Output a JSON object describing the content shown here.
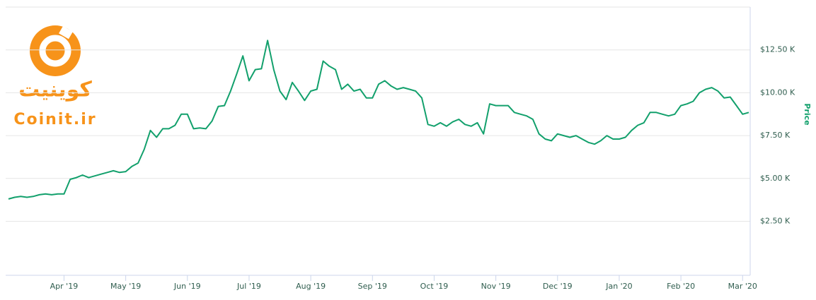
{
  "chart_data": {
    "type": "line",
    "y_axis_title": "Price",
    "watermark": {
      "title": "کوینیت",
      "site": "Coinit.ir"
    },
    "categories": [
      null,
      null,
      null,
      null,
      null,
      null,
      null,
      null,
      null,
      "Apr '19",
      null,
      null,
      null,
      null,
      null,
      null,
      null,
      null,
      null,
      "May '19",
      null,
      null,
      null,
      null,
      null,
      null,
      null,
      null,
      null,
      "Jun '19",
      null,
      null,
      null,
      null,
      null,
      null,
      null,
      null,
      null,
      "Jul '19",
      null,
      null,
      null,
      null,
      null,
      null,
      null,
      null,
      null,
      "Aug '19",
      null,
      null,
      null,
      null,
      null,
      null,
      null,
      null,
      null,
      "Sep '19",
      null,
      null,
      null,
      null,
      null,
      null,
      null,
      null,
      null,
      "Oct '19",
      null,
      null,
      null,
      null,
      null,
      null,
      null,
      null,
      null,
      "Nov '19",
      null,
      null,
      null,
      null,
      null,
      null,
      null,
      null,
      null,
      "Dec '19",
      null,
      null,
      null,
      null,
      null,
      null,
      null,
      null,
      null,
      "Jan '20",
      null,
      null,
      null,
      null,
      null,
      null,
      null,
      null,
      null,
      "Feb '20",
      null,
      null,
      null,
      null,
      null,
      null,
      null,
      null,
      null,
      "Mar '20",
      null
    ],
    "series": [
      {
        "name": "Price",
        "color": "#12a06c",
        "values": [
          3800,
          3900,
          3950,
          3900,
          3950,
          4050,
          4100,
          4050,
          4100,
          4100,
          4950,
          5050,
          5200,
          5050,
          5150,
          5250,
          5350,
          5450,
          5350,
          5400,
          5700,
          5900,
          6700,
          7800,
          7400,
          7900,
          7900,
          8100,
          8750,
          8750,
          7900,
          7950,
          7900,
          8350,
          9200,
          9250,
          10100,
          11100,
          12150,
          10700,
          11350,
          11400,
          13050,
          11350,
          10100,
          9600,
          10600,
          10100,
          9550,
          10100,
          10200,
          11850,
          11550,
          11350,
          10200,
          10500,
          10100,
          10200,
          9700,
          9700,
          10500,
          10700,
          10400,
          10200,
          10300,
          10200,
          10100,
          9700,
          8150,
          8050,
          8250,
          8050,
          8300,
          8450,
          8150,
          8050,
          8250,
          7600,
          9350,
          9250,
          9250,
          9250,
          8850,
          8750,
          8650,
          8450,
          7600,
          7300,
          7200,
          7600,
          7500,
          7400,
          7500,
          7300,
          7100,
          7000,
          7200,
          7500,
          7300,
          7300,
          7400,
          7800,
          8100,
          8250,
          8850,
          8850,
          8750,
          8650,
          8750,
          9250,
          9350,
          9500,
          10000,
          10200,
          10300,
          10100,
          9700,
          9750,
          9250,
          8750,
          8850
        ]
      }
    ],
    "ylim": [
      -650,
      15000
    ],
    "yticks": [
      {
        "value": 2500,
        "label": "$2.50 K"
      },
      {
        "value": 5000,
        "label": "$5.00 K"
      },
      {
        "value": 7500,
        "label": "$7.50 K"
      },
      {
        "value": 10000,
        "label": "$10.00 K"
      },
      {
        "value": 12500,
        "label": "$12.50 K"
      }
    ],
    "grid": true
  }
}
